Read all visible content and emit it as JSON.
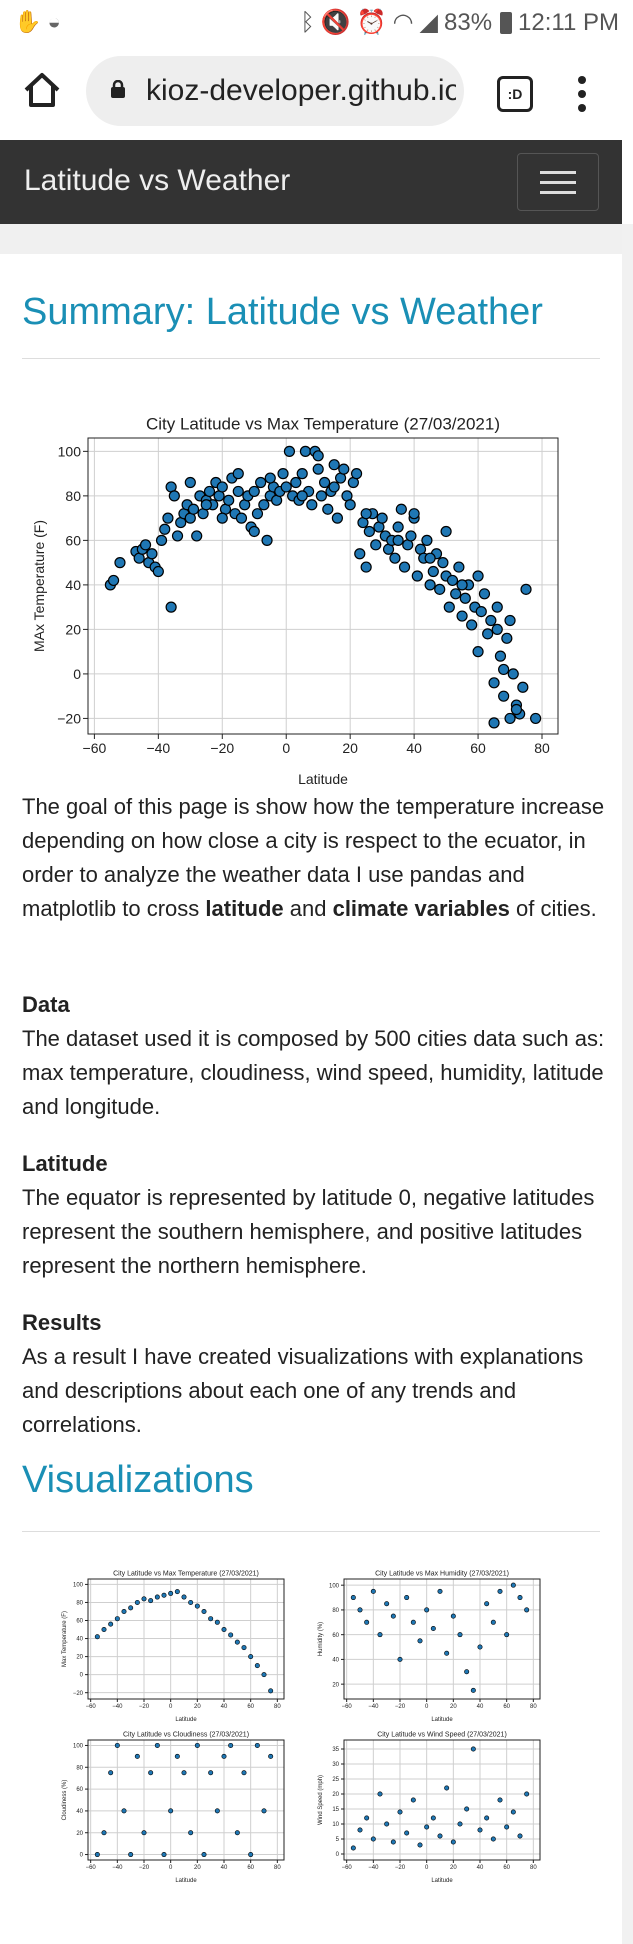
{
  "status": {
    "time": "12:11 PM",
    "battery": "83%"
  },
  "browser": {
    "url": "kioz-developer.github.io/",
    "tabs_label": ":D"
  },
  "navbar": {
    "brand": "Latitude vs Weather"
  },
  "summary": {
    "title": "Summary: Latitude vs Weather",
    "intro_1": "The goal of this page is show how the temperature increase depending on how close a city is respect to the ecuator, in order to analyze the weather data I use pandas and matplotlib to cross ",
    "intro_b1": "latitude",
    "intro_2": " and ",
    "intro_b2": "climate variables",
    "intro_3": " of cities.",
    "data_head": "Data",
    "data_text": "The dataset used it is composed by 500 cities data such as: max temperature, cloudiness, wind speed, humidity, latitude and longitude.",
    "lat_head": "Latitude",
    "lat_text": "The equator is represented by latitude 0, negative latitudes represent the southern hemisphere, and positive latitudes represent the northern hemisphere.",
    "res_head": "Results",
    "res_text": "As a result I have created visualizations with explanations and descriptions about each one of any trends and correlations."
  },
  "visualizations": {
    "title": "Visualizations"
  },
  "colors": {
    "accent": "#1a8fb5",
    "navbar": "#333333",
    "point": "#1f77b4",
    "point_edge": "#000000"
  },
  "chart_data": [
    {
      "type": "scatter",
      "title": "City Latitude vs Max Temperature (27/03/2021)",
      "xlabel": "Latitude",
      "ylabel": "MAx Temperature (F)",
      "xlim": [
        -62,
        85
      ],
      "ylim": [
        -27,
        106
      ],
      "xticks": [
        -60,
        -40,
        -20,
        0,
        20,
        40,
        60,
        80
      ],
      "yticks": [
        -20,
        0,
        20,
        40,
        60,
        80,
        100
      ],
      "grid": true,
      "trend": "temperature peaks near latitude 0 to 20 (about 80-100 F) and falls toward -20 F at latitude 70-80; sampled points listed",
      "x": [
        -55,
        -54,
        -52,
        -47,
        -46,
        -45,
        -44,
        -43,
        -42,
        -41,
        -40,
        -39,
        -38,
        -37,
        -36,
        -35,
        -34,
        -33,
        -32,
        -31,
        -30,
        -29,
        -28,
        -27,
        -26,
        -25,
        -24,
        -23,
        -22,
        -21,
        -20,
        -19,
        -18,
        -17,
        -16,
        -15,
        -14,
        -13,
        -12,
        -11,
        -10,
        -9,
        -8,
        -7,
        -6,
        -5,
        -4,
        -3,
        -2,
        -1,
        0,
        1,
        2,
        3,
        4,
        5,
        6,
        7,
        8,
        9,
        10,
        11,
        12,
        13,
        14,
        15,
        16,
        17,
        18,
        19,
        20,
        21,
        22,
        23,
        24,
        25,
        26,
        27,
        28,
        29,
        30,
        31,
        32,
        33,
        34,
        35,
        36,
        37,
        38,
        39,
        40,
        41,
        42,
        43,
        44,
        45,
        46,
        47,
        48,
        49,
        50,
        51,
        52,
        53,
        54,
        55,
        56,
        57,
        58,
        59,
        60,
        61,
        62,
        63,
        64,
        65,
        66,
        67,
        68,
        69,
        70,
        71,
        72,
        73,
        74,
        75,
        78,
        -36,
        -30,
        -25,
        -20,
        -15,
        -10,
        -5,
        5,
        10,
        15,
        25,
        35,
        45,
        55,
        65,
        70,
        40,
        50,
        60,
        66,
        68,
        72
      ],
      "y": [
        40,
        42,
        50,
        55,
        52,
        56,
        58,
        50,
        54,
        48,
        46,
        60,
        65,
        70,
        84,
        80,
        62,
        68,
        72,
        76,
        70,
        74,
        62,
        80,
        72,
        78,
        82,
        76,
        86,
        80,
        84,
        74,
        78,
        88,
        72,
        90,
        70,
        76,
        80,
        66,
        82,
        72,
        86,
        76,
        60,
        80,
        84,
        78,
        82,
        90,
        84,
        100,
        80,
        86,
        78,
        90,
        100,
        82,
        76,
        100,
        92,
        80,
        86,
        74,
        82,
        84,
        70,
        88,
        92,
        80,
        76,
        86,
        90,
        54,
        68,
        48,
        64,
        72,
        58,
        66,
        70,
        62,
        56,
        60,
        52,
        66,
        74,
        48,
        58,
        62,
        70,
        44,
        56,
        52,
        60,
        40,
        46,
        54,
        38,
        50,
        44,
        30,
        42,
        36,
        48,
        26,
        34,
        40,
        22,
        30,
        10,
        28,
        36,
        18,
        24,
        -4,
        30,
        8,
        -10,
        16,
        -20,
        0,
        -14,
        -18,
        -6,
        38,
        -20,
        30,
        86,
        76,
        70,
        82,
        64,
        88,
        80,
        98,
        94,
        72,
        60,
        52,
        40,
        -22,
        24,
        72,
        64,
        44,
        20,
        2,
        -16
      ]
    },
    {
      "type": "scatter",
      "title": "City Latitude vs Max Temperature (27/03/2021)",
      "xlabel": "Latitude",
      "ylabel": "Max Temperature (F)",
      "xlim": [
        -62,
        85
      ],
      "ylim": [
        -27,
        106
      ],
      "xticks": [
        -60,
        -40,
        -20,
        0,
        20,
        40,
        60,
        80
      ],
      "yticks": [
        -20,
        0,
        20,
        40,
        60,
        80,
        100
      ],
      "grid": true,
      "x": [
        -55,
        -50,
        -45,
        -40,
        -35,
        -30,
        -25,
        -20,
        -15,
        -10,
        -5,
        0,
        5,
        10,
        15,
        20,
        25,
        30,
        35,
        40,
        45,
        50,
        55,
        60,
        65,
        70,
        75
      ],
      "y": [
        42,
        50,
        56,
        62,
        70,
        74,
        80,
        84,
        82,
        86,
        88,
        90,
        92,
        86,
        80,
        76,
        70,
        62,
        58,
        50,
        44,
        36,
        30,
        20,
        10,
        0,
        -18
      ]
    },
    {
      "type": "scatter",
      "title": "City Latitude vs Max Humidity (27/03/2021)",
      "xlabel": "Latitude",
      "ylabel": "Humidity (%)",
      "xlim": [
        -62,
        85
      ],
      "ylim": [
        8,
        105
      ],
      "xticks": [
        -60,
        -40,
        -20,
        0,
        20,
        40,
        60,
        80
      ],
      "yticks": [
        20,
        40,
        60,
        80,
        100
      ],
      "grid": true,
      "x": [
        -55,
        -50,
        -45,
        -40,
        -35,
        -30,
        -25,
        -20,
        -15,
        -10,
        -5,
        0,
        5,
        10,
        15,
        20,
        25,
        30,
        35,
        40,
        45,
        50,
        55,
        60,
        65,
        70,
        75
      ],
      "y": [
        90,
        80,
        70,
        95,
        60,
        85,
        75,
        40,
        90,
        70,
        55,
        80,
        65,
        95,
        45,
        75,
        60,
        30,
        15,
        50,
        85,
        70,
        95,
        60,
        100,
        90,
        80
      ]
    },
    {
      "type": "scatter",
      "title": "City Latitude vs Cloudiness (27/03/2021)",
      "xlabel": "Latitude",
      "ylabel": "Cloudiness (%)",
      "xlim": [
        -62,
        85
      ],
      "ylim": [
        -5,
        105
      ],
      "xticks": [
        -60,
        -40,
        -20,
        0,
        20,
        40,
        60,
        80
      ],
      "yticks": [
        0,
        20,
        40,
        60,
        80,
        100
      ],
      "grid": true,
      "x": [
        -55,
        -50,
        -45,
        -40,
        -35,
        -30,
        -25,
        -20,
        -15,
        -10,
        -5,
        0,
        5,
        10,
        15,
        20,
        25,
        30,
        35,
        40,
        45,
        50,
        55,
        60,
        65,
        70,
        75
      ],
      "y": [
        0,
        20,
        75,
        100,
        40,
        0,
        90,
        20,
        75,
        100,
        0,
        40,
        90,
        75,
        20,
        100,
        0,
        75,
        40,
        90,
        100,
        20,
        75,
        0,
        100,
        40,
        90
      ]
    },
    {
      "type": "scatter",
      "title": "City Latitude vs Wind Speed (27/03/2021)",
      "xlabel": "Latitude",
      "ylabel": "Wind Speed (mph)",
      "xlim": [
        -62,
        85
      ],
      "ylim": [
        -2,
        38
      ],
      "xticks": [
        -60,
        -40,
        -20,
        0,
        20,
        40,
        60,
        80
      ],
      "yticks": [
        0,
        5,
        10,
        15,
        20,
        25,
        30,
        35
      ],
      "grid": true,
      "x": [
        -55,
        -50,
        -45,
        -40,
        -35,
        -30,
        -25,
        -20,
        -15,
        -10,
        -5,
        0,
        5,
        10,
        15,
        20,
        25,
        30,
        35,
        40,
        45,
        50,
        55,
        60,
        65,
        70,
        75
      ],
      "y": [
        2,
        8,
        12,
        5,
        20,
        10,
        4,
        14,
        7,
        18,
        3,
        9,
        12,
        6,
        22,
        4,
        10,
        15,
        35,
        8,
        12,
        5,
        18,
        9,
        14,
        6,
        20
      ]
    }
  ]
}
